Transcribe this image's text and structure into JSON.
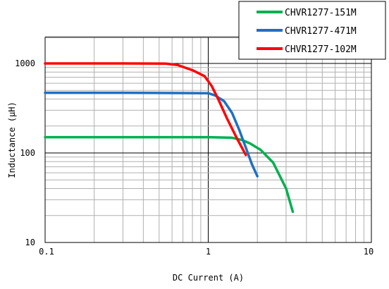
{
  "chart_data": {
    "type": "line",
    "xlabel": "DC Current (A)",
    "ylabel": "Inductance (μH)",
    "x_scale": "log",
    "y_scale": "log",
    "xlim": [
      0.1,
      10
    ],
    "ylim": [
      10,
      2000
    ],
    "x_ticks": [
      "0.1",
      "1",
      "10"
    ],
    "y_ticks": [
      "10",
      "100",
      "1000"
    ],
    "grid": true,
    "legend_position": "top-right",
    "series": [
      {
        "name": "CHVR1277-151M",
        "color": "#00b050",
        "x": [
          0.1,
          0.3,
          1.0,
          1.4,
          1.6,
          1.8,
          2.1,
          2.5,
          3.0,
          3.3
        ],
        "y": [
          150,
          150,
          150,
          148,
          140,
          128,
          108,
          78,
          40,
          22
        ]
      },
      {
        "name": "CHVR1277-471M",
        "color": "#1f6fc5",
        "x": [
          0.1,
          0.3,
          1.0,
          1.1,
          1.25,
          1.4,
          1.55,
          1.7,
          1.85,
          2.0
        ],
        "y": [
          470,
          470,
          465,
          440,
          380,
          280,
          180,
          115,
          75,
          55
        ]
      },
      {
        "name": "CHVR1277-102M",
        "color": "#ff0000",
        "x": [
          0.1,
          0.3,
          0.55,
          0.65,
          0.8,
          0.95,
          1.05,
          1.15,
          1.3,
          1.5,
          1.7
        ],
        "y": [
          1000,
          1000,
          995,
          960,
          840,
          720,
          560,
          400,
          245,
          145,
          95
        ]
      }
    ]
  }
}
